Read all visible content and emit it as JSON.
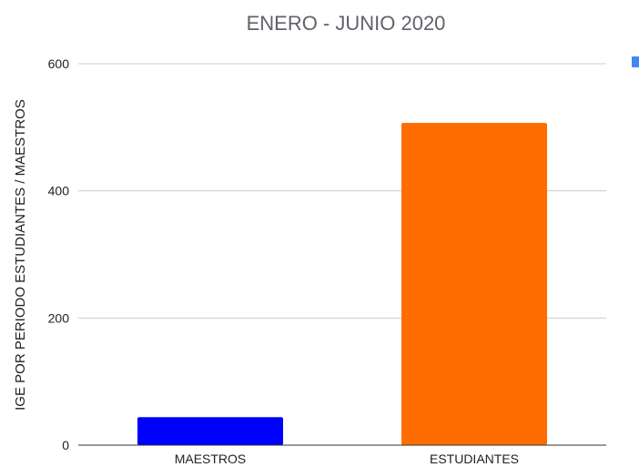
{
  "chart_data": {
    "type": "bar",
    "title": "ENERO - JUNIO 2020",
    "xlabel": "",
    "ylabel": "IGE POR PERIODO ESTUDIANTES / MAESTROS",
    "categories": [
      "MAESTROS",
      "ESTUDIANTES"
    ],
    "values": [
      44,
      507
    ],
    "colors": [
      "#0000ff",
      "#ff6d00"
    ],
    "ylim": [
      0,
      600
    ],
    "yticks": [
      0,
      200,
      400,
      600
    ],
    "grid": true,
    "gridline_color": "#cccccc",
    "legend_marker_color": "#4285f4",
    "legend_position": "right"
  }
}
